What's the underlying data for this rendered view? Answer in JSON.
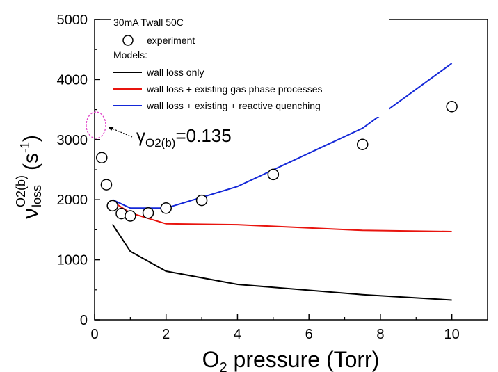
{
  "chart_data": {
    "type": "line",
    "title": "",
    "xlabel": {
      "main": "O",
      "sub": "2",
      "rest": " pressure (Torr)"
    },
    "ylabel": {
      "symbol": "ν",
      "sup": "O2(b)",
      "sub": "loss",
      "unit_open": "(s",
      "unit_sup": "-1",
      "unit_close": ")"
    },
    "xlim": [
      0,
      11
    ],
    "ylim": [
      0,
      5000
    ],
    "xticks": [
      0,
      2,
      4,
      6,
      8,
      10
    ],
    "yticks": [
      0,
      1000,
      2000,
      3000,
      4000,
      5000
    ],
    "xtick_labels": [
      "0",
      "2",
      "4",
      "6",
      "8",
      "10"
    ],
    "ytick_labels": [
      "0",
      "1000",
      "2000",
      "3000",
      "4000",
      "5000"
    ],
    "legend": {
      "header": "30mA Twall 50C",
      "experiment_label": "experiment",
      "models_header": "Models:"
    },
    "experiment": {
      "name": "experiment",
      "x": [
        0.2,
        0.33,
        0.5,
        0.75,
        1.0,
        1.5,
        2.0,
        3.0,
        5.0,
        7.5,
        10.0
      ],
      "y": [
        2700,
        2250,
        1900,
        1770,
        1730,
        1780,
        1860,
        1990,
        2420,
        2920,
        3550
      ]
    },
    "series": [
      {
        "name": "wall loss only",
        "color": "#000000",
        "x": [
          0.5,
          1.0,
          2.0,
          4.0,
          7.5,
          10.0
        ],
        "y": [
          1590,
          1140,
          810,
          590,
          420,
          330
        ]
      },
      {
        "name": "wall loss + existing gas phase processes",
        "color": "#e8140e",
        "x": [
          0.5,
          1.0,
          2.0,
          4.0,
          7.5,
          10.0
        ],
        "y": [
          1970,
          1780,
          1600,
          1585,
          1490,
          1470
        ]
      },
      {
        "name": "wall loss + existing + reactive quenching",
        "color": "#1428d8",
        "x": [
          0.5,
          1.0,
          2.0,
          4.0,
          7.5,
          10.0
        ],
        "y": [
          2000,
          1860,
          1860,
          2220,
          3190,
          4270
        ]
      }
    ],
    "annotation": {
      "symbol": "γ",
      "sub": "O2(b)",
      "value": "=0.135",
      "ellipse_color": "#e040c8",
      "ellipse_center": {
        "x": 0.05,
        "y": 3210
      }
    },
    "grid": false,
    "legend_placement": "top-left"
  }
}
